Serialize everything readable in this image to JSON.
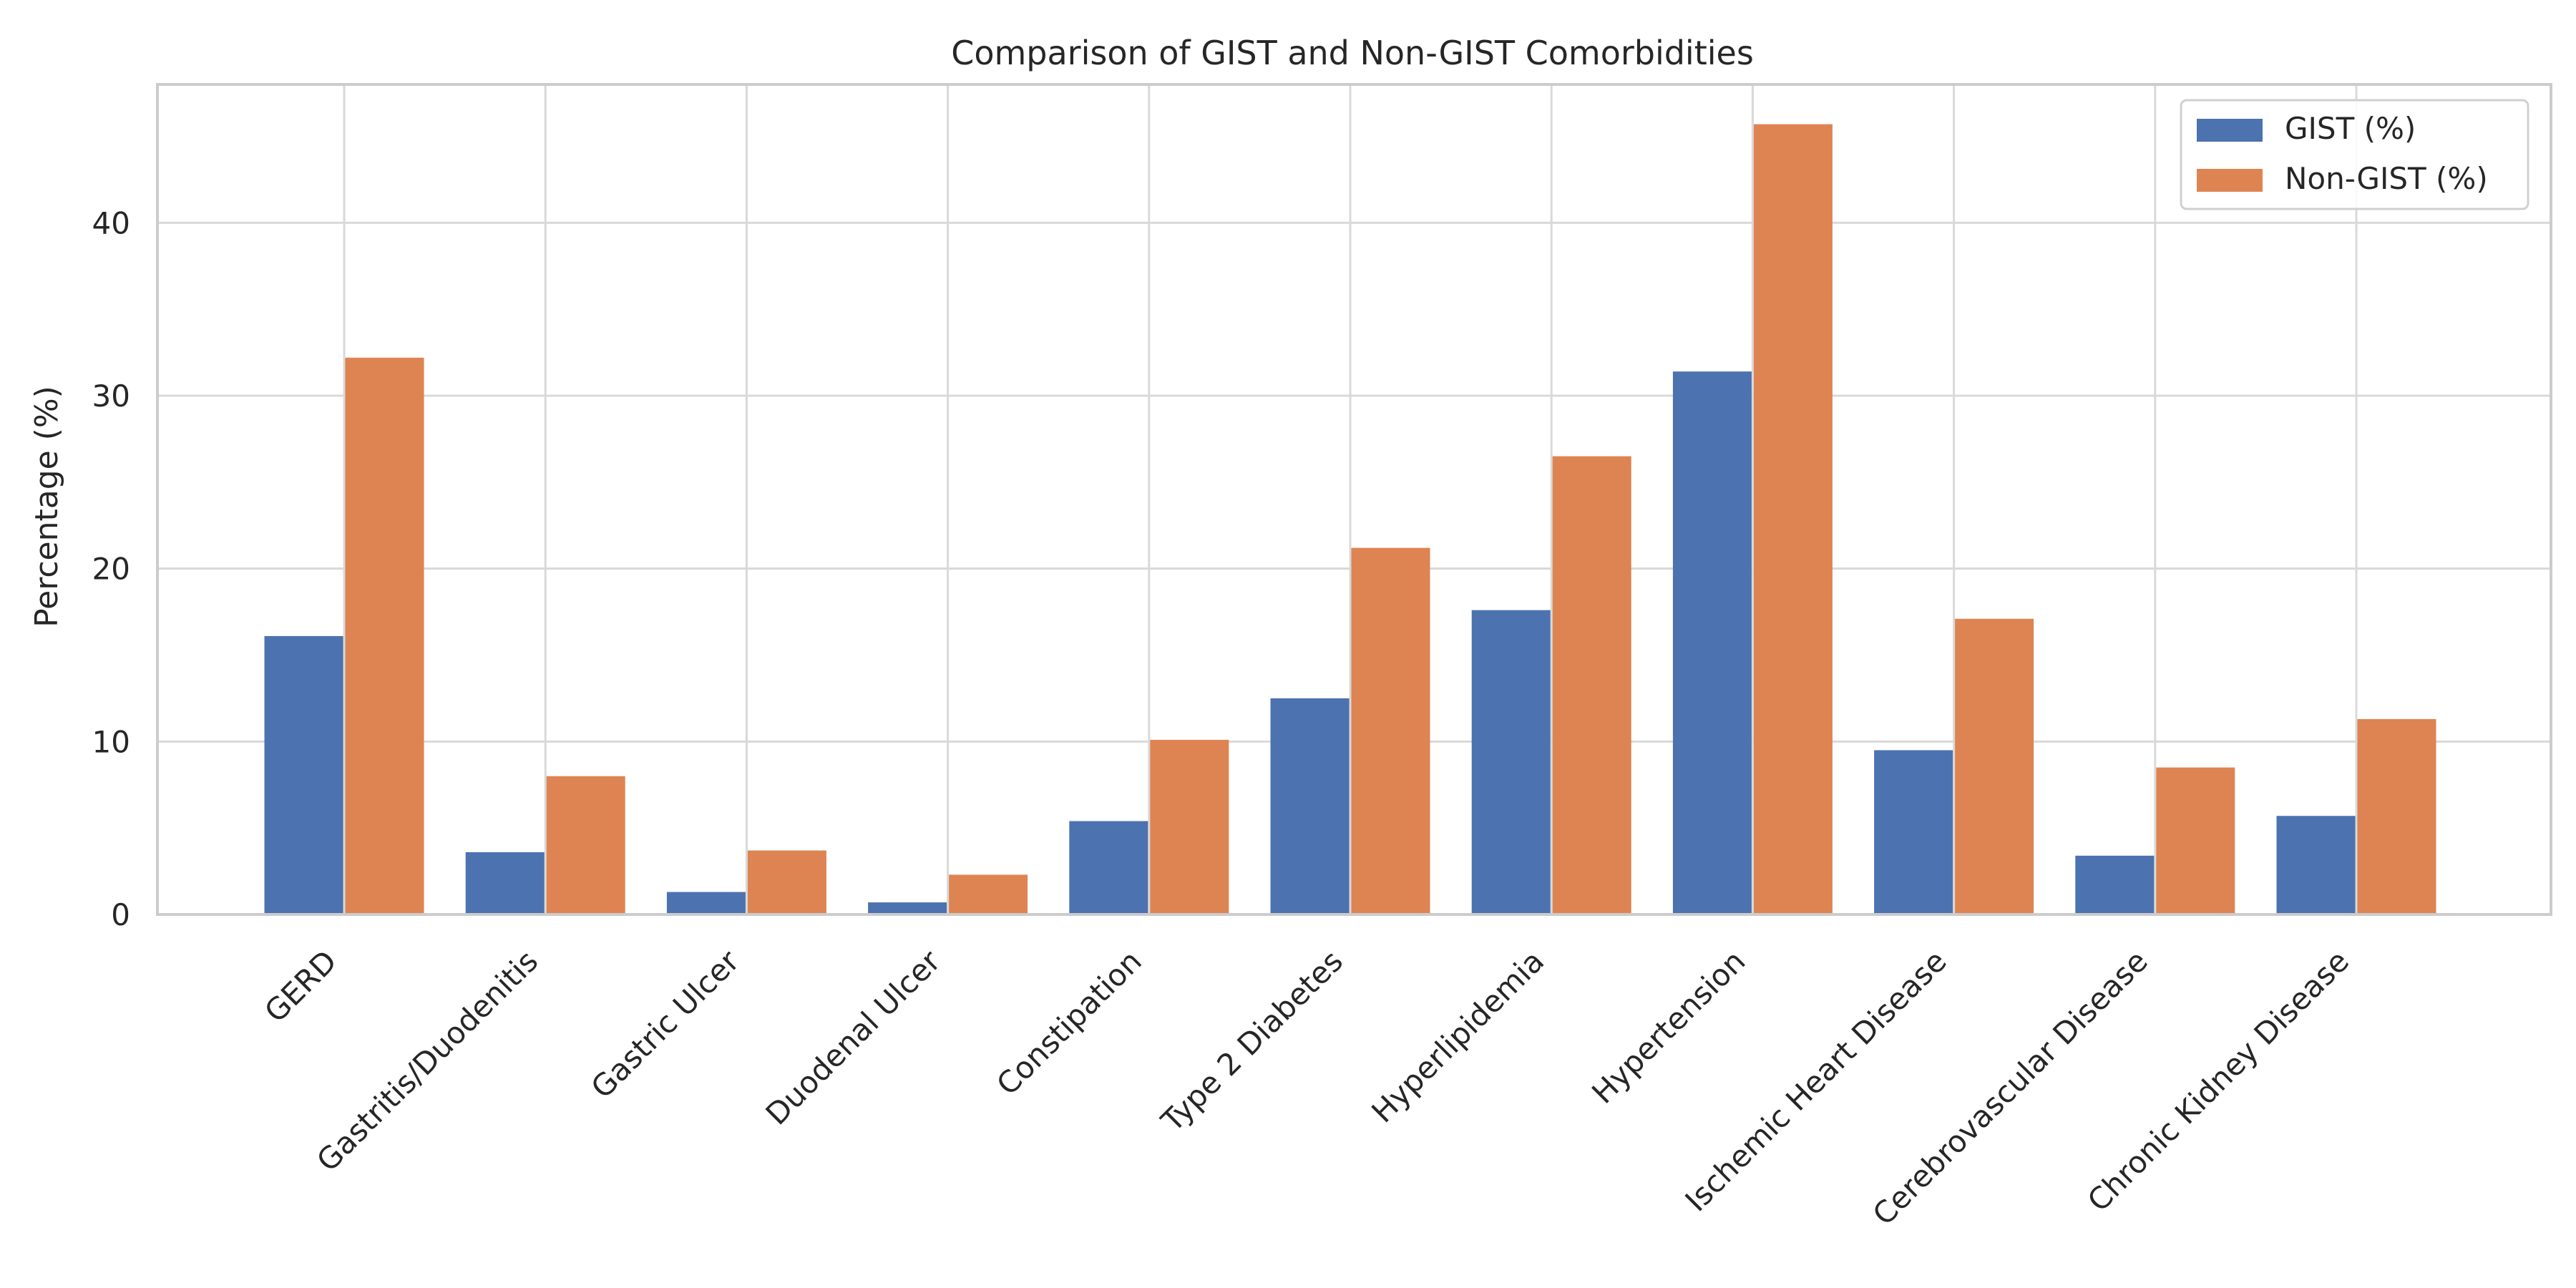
{
  "chart_data": {
    "type": "bar",
    "title": "Comparison of GIST and Non-GIST Comorbidities",
    "xlabel": "",
    "ylabel": "Percentage (%)",
    "ylim": [
      0,
      48
    ],
    "yticks": [
      0,
      10,
      20,
      30,
      40
    ],
    "grid": true,
    "legend_position": "top-right",
    "categories": [
      "GERD",
      "Gastritis/Duodenitis",
      "Gastric Ulcer",
      "Duodenal Ulcer",
      "Constipation",
      "Type 2 Diabetes",
      "Hyperlipidemia",
      "Hypertension",
      "Ischemic Heart Disease",
      "Cerebrovascular Disease",
      "Chronic Kidney Disease"
    ],
    "series": [
      {
        "name": "GIST (%)",
        "color": "#4c72b0",
        "values": [
          16.1,
          3.6,
          1.3,
          0.7,
          5.4,
          12.5,
          17.6,
          31.4,
          9.5,
          3.4,
          5.7
        ]
      },
      {
        "name": "Non-GIST (%)",
        "color": "#dd8452",
        "values": [
          32.2,
          8.0,
          3.7,
          2.3,
          10.1,
          21.2,
          26.5,
          45.7,
          17.1,
          8.5,
          11.3
        ]
      }
    ]
  }
}
